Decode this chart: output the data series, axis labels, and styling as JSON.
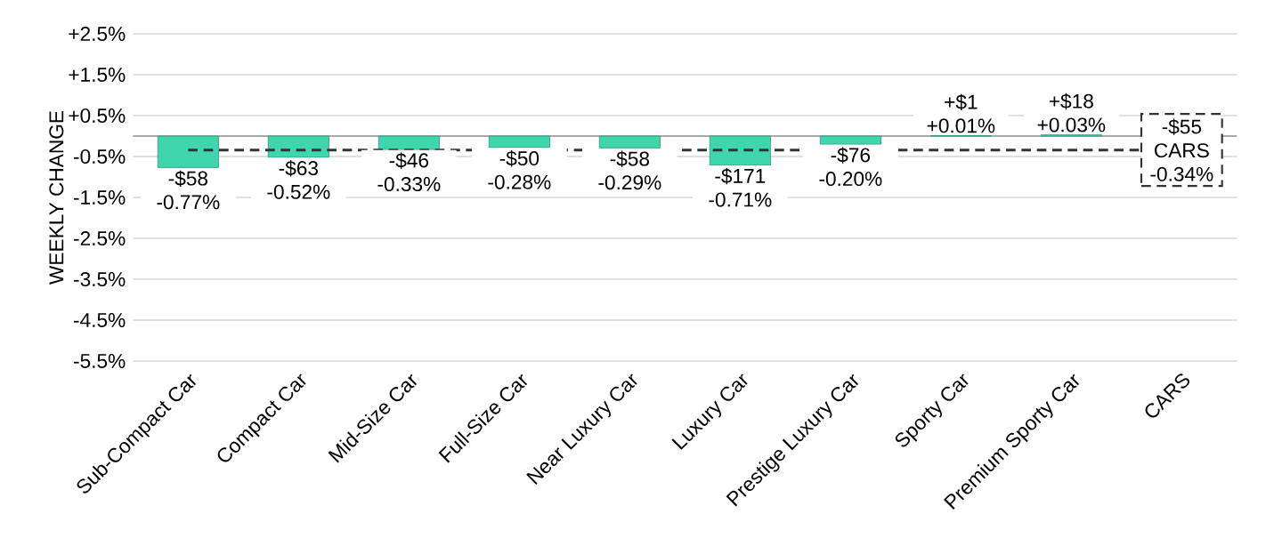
{
  "chart_data": {
    "type": "bar",
    "ylabel": "WEEKLY CHANGE",
    "categories": [
      "Sub-Compact Car",
      "Compact Car",
      "Mid-Size Car",
      "Full-Size Car",
      "Near Luxury Car",
      "Luxury Car",
      "Prestige Luxury Car",
      "Sporty Car",
      "Premium Sporty Car",
      "CARS"
    ],
    "values": [
      -0.77,
      -0.52,
      -0.33,
      -0.28,
      -0.29,
      -0.71,
      -0.2,
      0.01,
      0.03,
      null
    ],
    "value_labels": [
      "-$58 -0.77%",
      "-$63 -0.52%",
      "-$46 -0.33%",
      "-$50 -0.28%",
      "-$58 -0.29%",
      "-$171 -0.71%",
      "-$76 -0.20%",
      "+$1 +0.01%",
      "+$18 +0.03%",
      null
    ],
    "color": "#3fd6ae",
    "ylim": [
      -5.5,
      2.5
    ],
    "yticks": [
      {
        "value": 2.5,
        "label": "+2.5%"
      },
      {
        "value": 1.5,
        "label": "+1.5%"
      },
      {
        "value": 0.5,
        "label": "+0.5%"
      },
      {
        "value": -0.5,
        "label": "-0.5%"
      },
      {
        "value": -1.5,
        "label": "-1.5%"
      },
      {
        "value": -2.5,
        "label": "-2.5%"
      },
      {
        "value": -3.5,
        "label": "-3.5%"
      },
      {
        "value": -4.5,
        "label": "-4.5%"
      },
      {
        "value": -5.5,
        "label": "-5.5%"
      }
    ],
    "grid": "y",
    "ref_lines": [
      {
        "axis": "y",
        "value": -0.34,
        "label": "-$55 CARS -0.34%",
        "color": "#333333",
        "line_style": "dashed"
      }
    ]
  }
}
